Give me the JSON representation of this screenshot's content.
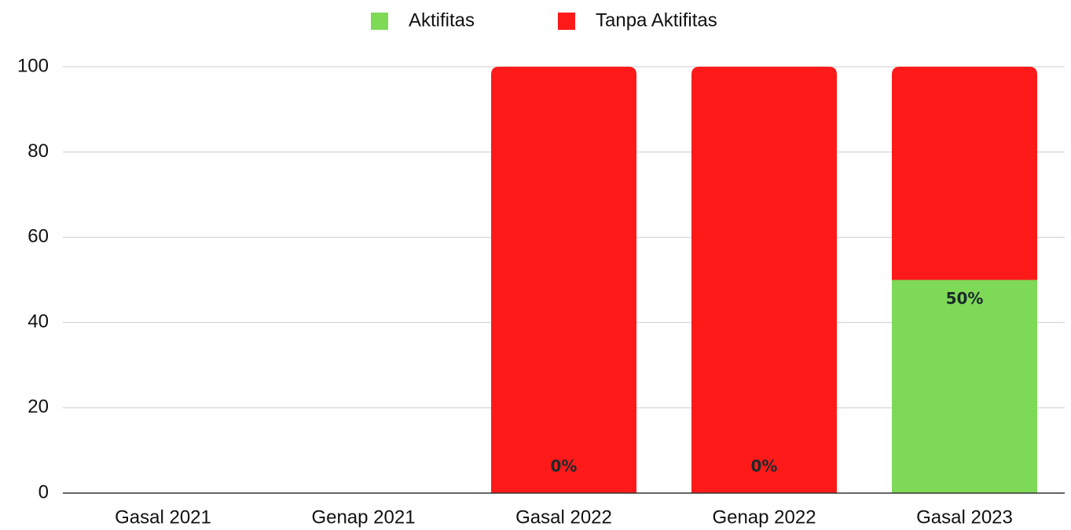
{
  "chart_data": {
    "type": "stacked_bar",
    "categories": [
      "Gasal 2021",
      "Genap 2021",
      "Gasal 2022",
      "Genap 2022",
      "Gasal 2023"
    ],
    "series": [
      {
        "name": "Aktifitas",
        "color": "#7ed957",
        "values": [
          null,
          null,
          0,
          0,
          50
        ],
        "value_labels": [
          null,
          null,
          "0%",
          "0%",
          "50%"
        ]
      },
      {
        "name": "Tanpa Aktifitas",
        "color": "#ff1a1a",
        "values": [
          null,
          null,
          100,
          100,
          50
        ]
      }
    ],
    "ylim": [
      0,
      100
    ],
    "yticks": [
      0,
      20,
      40,
      60,
      80,
      100
    ],
    "grid": true,
    "legend": "top"
  }
}
